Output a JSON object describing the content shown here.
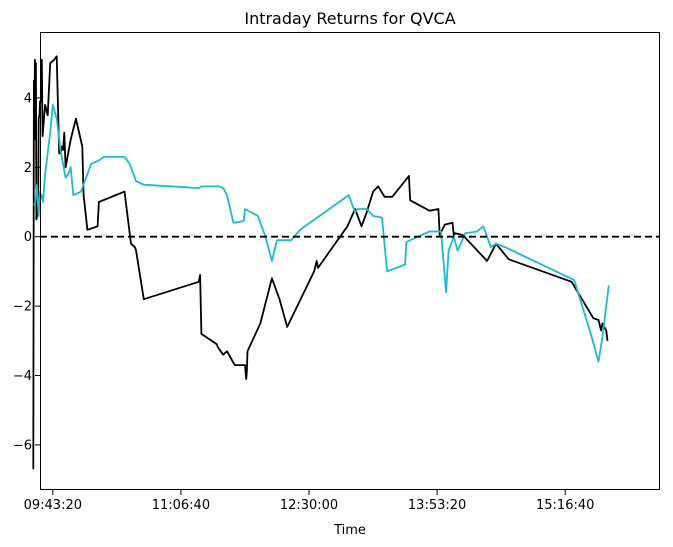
{
  "chart_data": {
    "type": "line",
    "title": "Intraday Returns for QVCA",
    "xlabel": "Time",
    "ylabel": "",
    "x_unit": "seconds since midnight",
    "xlim": [
      34500,
      58700
    ],
    "ylim": [
      -7.3,
      5.9
    ],
    "xticks": [
      {
        "value": 35000,
        "label": "09:43:20"
      },
      {
        "value": 40000,
        "label": "11:06:40"
      },
      {
        "value": 45000,
        "label": "12:30:00"
      },
      {
        "value": 50000,
        "label": "13:53:20"
      },
      {
        "value": 55000,
        "label": "15:16:40"
      }
    ],
    "yticks": [
      {
        "value": -6,
        "label": "−6"
      },
      {
        "value": -4,
        "label": "−4"
      },
      {
        "value": -2,
        "label": "−2"
      },
      {
        "value": 0,
        "label": "0"
      },
      {
        "value": 2,
        "label": "2"
      },
      {
        "value": 4,
        "label": "4"
      }
    ],
    "reference_line": {
      "y": 0,
      "style": "dashed",
      "color": "#000000"
    },
    "grid": false,
    "series": [
      {
        "color": "#000000",
        "points": [
          [
            34240,
            -6.7
          ],
          [
            34260,
            4.5
          ],
          [
            34280,
            2.8
          ],
          [
            34300,
            5.1
          ],
          [
            34320,
            3.0
          ],
          [
            34340,
            5.0
          ],
          [
            34360,
            0.5
          ],
          [
            34410,
            0.7
          ],
          [
            34430,
            0.9
          ],
          [
            34450,
            3.4
          ],
          [
            34480,
            3.5
          ],
          [
            34500,
            3.9
          ],
          [
            34540,
            3.9
          ],
          [
            34570,
            5.1
          ],
          [
            34600,
            2.9
          ],
          [
            34700,
            3.8
          ],
          [
            34800,
            3.5
          ],
          [
            34900,
            5.0
          ],
          [
            35050,
            5.1
          ],
          [
            35150,
            5.2
          ],
          [
            35250,
            2.4
          ],
          [
            35300,
            2.4
          ],
          [
            35350,
            2.6
          ],
          [
            35400,
            2.5
          ],
          [
            35450,
            3.0
          ],
          [
            35500,
            2.0
          ],
          [
            35700,
            2.8
          ],
          [
            35900,
            3.4
          ],
          [
            36150,
            2.6
          ],
          [
            36200,
            1.2
          ],
          [
            36350,
            0.2
          ],
          [
            36750,
            0.3
          ],
          [
            36800,
            1.0
          ],
          [
            37800,
            1.3
          ],
          [
            38050,
            -0.2
          ],
          [
            38200,
            -0.3
          ],
          [
            38250,
            -0.4
          ],
          [
            38400,
            -1.1
          ],
          [
            38550,
            -1.8
          ],
          [
            40700,
            -1.3
          ],
          [
            40750,
            -1.1
          ],
          [
            40800,
            -2.8
          ],
          [
            41400,
            -3.1
          ],
          [
            41450,
            -3.2
          ],
          [
            41650,
            -3.4
          ],
          [
            41800,
            -3.3
          ],
          [
            42100,
            -3.7
          ],
          [
            42500,
            -3.7
          ],
          [
            42550,
            -4.1
          ],
          [
            42570,
            -3.9
          ],
          [
            42600,
            -3.3
          ],
          [
            43100,
            -2.5
          ],
          [
            43550,
            -1.2
          ],
          [
            43850,
            -1.8
          ],
          [
            44150,
            -2.6
          ],
          [
            45200,
            -1.0
          ],
          [
            45300,
            -0.7
          ],
          [
            45350,
            -0.9
          ],
          [
            46500,
            0.3
          ],
          [
            46800,
            0.8
          ],
          [
            46900,
            0.6
          ],
          [
            47050,
            0.3
          ],
          [
            47250,
            0.7
          ],
          [
            47500,
            1.3
          ],
          [
            47700,
            1.45
          ],
          [
            47950,
            1.15
          ],
          [
            48250,
            1.15
          ],
          [
            48900,
            1.75
          ],
          [
            48950,
            1.05
          ],
          [
            49700,
            0.75
          ],
          [
            50050,
            0.8
          ],
          [
            50100,
            0.05
          ],
          [
            50300,
            0.35
          ],
          [
            50600,
            0.4
          ],
          [
            50650,
            0.05
          ],
          [
            50700,
            0.1
          ],
          [
            51000,
            0.05
          ],
          [
            51950,
            -0.7
          ],
          [
            52300,
            -0.2
          ],
          [
            52800,
            -0.65
          ],
          [
            55250,
            -1.3
          ],
          [
            56100,
            -2.35
          ],
          [
            56300,
            -2.4
          ],
          [
            56400,
            -2.7
          ],
          [
            56450,
            -2.5
          ],
          [
            56600,
            -2.7
          ],
          [
            56650,
            -3.0
          ]
        ]
      },
      {
        "color": "#17becf",
        "points": [
          [
            34260,
            0.9
          ],
          [
            34320,
            1.0
          ],
          [
            34380,
            1.5
          ],
          [
            34450,
            0.6
          ],
          [
            34500,
            1.3
          ],
          [
            34550,
            1.1
          ],
          [
            34600,
            1.2
          ],
          [
            34620,
            1.0
          ],
          [
            34700,
            1.8
          ],
          [
            34900,
            3.0
          ],
          [
            35000,
            3.8
          ],
          [
            35150,
            3.4
          ],
          [
            35300,
            2.5
          ],
          [
            35500,
            1.7
          ],
          [
            35600,
            1.8
          ],
          [
            35700,
            2.0
          ],
          [
            35800,
            1.2
          ],
          [
            36100,
            1.3
          ],
          [
            36500,
            2.1
          ],
          [
            36800,
            2.2
          ],
          [
            37000,
            2.3
          ],
          [
            37800,
            2.3
          ],
          [
            38000,
            2.1
          ],
          [
            38250,
            1.6
          ],
          [
            38550,
            1.5
          ],
          [
            40700,
            1.4
          ],
          [
            40800,
            1.45
          ],
          [
            41500,
            1.45
          ],
          [
            41650,
            1.4
          ],
          [
            41800,
            1.2
          ],
          [
            42050,
            0.4
          ],
          [
            42450,
            0.45
          ],
          [
            42500,
            0.8
          ],
          [
            43000,
            0.6
          ],
          [
            43300,
            0.0
          ],
          [
            43550,
            -0.7
          ],
          [
            43750,
            -0.1
          ],
          [
            44300,
            -0.1
          ],
          [
            44650,
            0.2
          ],
          [
            46550,
            1.2
          ],
          [
            46800,
            0.7
          ],
          [
            46900,
            0.8
          ],
          [
            47250,
            0.8
          ],
          [
            47500,
            0.6
          ],
          [
            47850,
            0.55
          ],
          [
            48050,
            -1.0
          ],
          [
            48750,
            -0.8
          ],
          [
            48800,
            -0.15
          ],
          [
            49250,
            0.0
          ],
          [
            49700,
            0.15
          ],
          [
            50150,
            0.15
          ],
          [
            50350,
            -1.6
          ],
          [
            50450,
            -0.4
          ],
          [
            50650,
            0.0
          ],
          [
            50800,
            -0.4
          ],
          [
            51100,
            0.1
          ],
          [
            51550,
            0.15
          ],
          [
            51800,
            0.3
          ],
          [
            52100,
            -0.3
          ],
          [
            52300,
            -0.2
          ],
          [
            52650,
            -0.3
          ],
          [
            55350,
            -1.25
          ],
          [
            56000,
            -2.8
          ],
          [
            56300,
            -3.6
          ],
          [
            56450,
            -2.9
          ],
          [
            56700,
            -1.4
          ]
        ]
      }
    ]
  }
}
